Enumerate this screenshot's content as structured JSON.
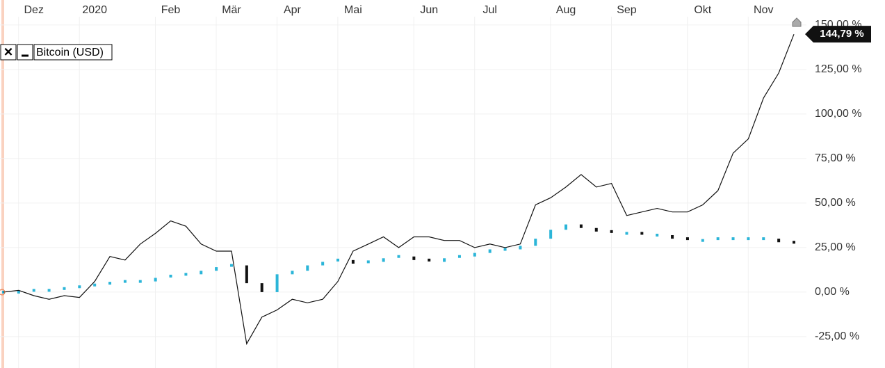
{
  "chart_data": {
    "type": "line",
    "categories": [
      null,
      null,
      "Dez",
      null,
      null,
      null,
      "2020",
      null,
      null,
      null,
      null,
      "Feb",
      null,
      null,
      null,
      "Mär",
      null,
      null,
      null,
      "Apr",
      null,
      null,
      null,
      "Mai",
      null,
      null,
      null,
      null,
      "Jun",
      null,
      null,
      null,
      "Jul",
      null,
      null,
      null,
      null,
      "Aug",
      null,
      null,
      null,
      "Sep",
      null,
      null,
      null,
      null,
      "Okt",
      null,
      null,
      null,
      "Nov",
      null,
      null
    ],
    "series": [
      {
        "name": "Bitcoin (USD)",
        "color": "#111111",
        "values": [
          0,
          1,
          -2,
          -4,
          -2,
          -3,
          6,
          20,
          18,
          27,
          33,
          40,
          37,
          27,
          23,
          23,
          -29,
          -14,
          -10,
          -4,
          -6,
          -4,
          6,
          23,
          27,
          31,
          25,
          31,
          31,
          29,
          29,
          25,
          27,
          25,
          27,
          49,
          53,
          59,
          66,
          59,
          61,
          43,
          45,
          47,
          45,
          45,
          49,
          57,
          78,
          86,
          109,
          123,
          144.79
        ],
        "value_labels": [
          null,
          null,
          null,
          null,
          null,
          null,
          null,
          null,
          null,
          null,
          null,
          null,
          null,
          null,
          null,
          null,
          null,
          null,
          null,
          null,
          null,
          null,
          null,
          null,
          null,
          null,
          null,
          null,
          null,
          null,
          null,
          null,
          null,
          null,
          null,
          null,
          null,
          null,
          null,
          null,
          null,
          null,
          null,
          null,
          null,
          null,
          null,
          null,
          null,
          null,
          null,
          null,
          "144,79 %"
        ]
      },
      {
        "color": "#2bb5d8",
        "values": [
          0,
          0,
          1,
          1,
          2,
          3,
          4,
          5,
          6,
          6,
          8,
          9,
          10,
          12,
          14,
          15,
          5,
          0,
          10,
          12,
          15,
          17,
          18,
          16,
          17,
          19,
          20,
          18,
          17,
          19,
          20,
          22,
          24,
          24,
          26,
          30,
          35,
          38,
          36,
          34,
          33,
          33,
          32,
          32,
          30,
          29,
          29,
          30,
          30,
          30,
          30,
          28,
          27
        ]
      }
    ],
    "ylim": [
      -42.6,
      164
    ],
    "yticks": [
      {
        "value": -25,
        "label": "-25,00 %"
      },
      {
        "value": 0,
        "label": "0,00 %"
      },
      {
        "value": 25,
        "label": "25,00 %"
      },
      {
        "value": 50,
        "label": "50,00 %"
      },
      {
        "value": 75,
        "label": "75,00 %"
      },
      {
        "value": 100,
        "label": "100,00 %"
      },
      {
        "value": 125,
        "label": "125,00 %"
      },
      {
        "value": 150,
        "label": "150,00 %"
      }
    ],
    "grid": true
  }
}
